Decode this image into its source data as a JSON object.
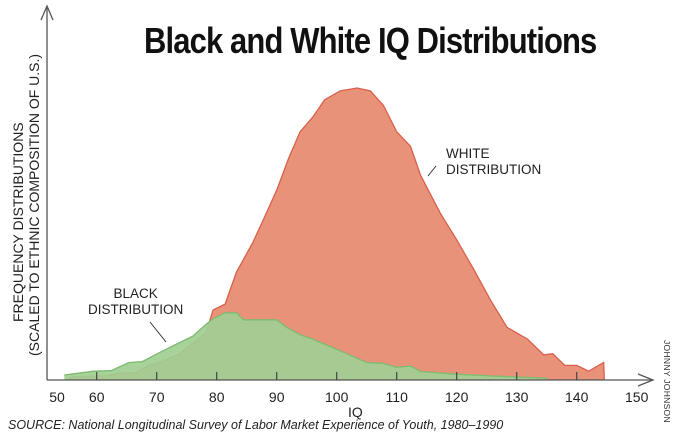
{
  "chart_data": {
    "type": "area",
    "title": "Black and White IQ Distributions",
    "xlabel": "IQ",
    "ylabel": [
      "FREQUENCY DISTRIBUTIONS",
      "(SCALED TO ETHNIC COMPOSITION OF U.S.)"
    ],
    "xlim": [
      50,
      150
    ],
    "xticks": [
      50,
      60,
      70,
      80,
      90,
      100,
      110,
      120,
      130,
      140,
      150
    ],
    "ylim": [
      0,
      100
    ],
    "grid": false,
    "legend": "none (direct labels)",
    "series": [
      {
        "name": "WHITE DISTRIBUTION",
        "label_lines": [
          "WHITE",
          "DISTRIBUTION"
        ],
        "fill": "#e8927a",
        "stroke": "#d8604a",
        "x": [
          54.7,
          56.2,
          60,
          61.7,
          63.5,
          66.5,
          68.7,
          70.9,
          73.8,
          76,
          78.2,
          79.4,
          81.4,
          83.3,
          86,
          87.8,
          90,
          92,
          93.9,
          96,
          98,
          100.6,
          103.4,
          105.6,
          107.8,
          110,
          112.3,
          114,
          117.3,
          120,
          122.8,
          125.6,
          128.4,
          131.8,
          134.5,
          136,
          138,
          140,
          142,
          144.5,
          144.6
        ],
        "values": [
          0,
          1.1,
          1.4,
          1.4,
          2.3,
          2.5,
          5,
          6.3,
          9,
          12.6,
          16,
          24,
          26,
          37,
          47,
          55,
          65,
          76,
          85,
          90,
          96,
          99,
          100,
          99,
          94,
          85,
          80,
          70,
          57,
          48,
          38,
          27.5,
          18,
          14,
          8.6,
          9,
          5,
          5,
          3,
          6,
          0
        ]
      },
      {
        "name": "BLACK DISTRIBUTION",
        "label_lines": [
          "BLACK",
          "DISTRIBUTION"
        ],
        "fill": "#9fcf93",
        "stroke": "#7dbb70",
        "x": [
          54.6,
          59.5,
          62.4,
          65.4,
          67.6,
          70.1,
          73,
          76,
          78.2,
          79.4,
          81.4,
          83.3,
          84.5,
          90,
          91.7,
          93.9,
          96,
          100.6,
          105,
          107.8,
          110,
          112.3,
          114,
          120,
          125.6,
          135,
          135.1
        ],
        "values": [
          1.7,
          3,
          3.2,
          6,
          6.3,
          9,
          12,
          15,
          19,
          21,
          23,
          23,
          20.6,
          20.6,
          18,
          15.5,
          14,
          10,
          6,
          5.7,
          4.4,
          4.8,
          2.9,
          2,
          1.4,
          0.6,
          0
        ]
      }
    ],
    "source": "SOURCE: National Longitudinal Survey of Labor Market Experience of Youth, 1980–1990",
    "credit": "JOHNNY JOHNSON"
  }
}
